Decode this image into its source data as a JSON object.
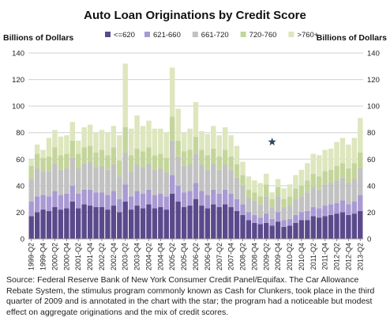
{
  "chart_data": {
    "type": "bar",
    "stacked": true,
    "title": "Auto Loan Originations by Credit Score",
    "ylabel_left": "Billions of Dollars",
    "ylabel_right": "Billions of Dollars",
    "ylim": [
      0,
      140
    ],
    "yticks": [
      0,
      20,
      40,
      60,
      80,
      100,
      120,
      140
    ],
    "xtick_labels": [
      "1999-Q2",
      "1999-Q4",
      "2000-Q2",
      "2000-Q4",
      "2001-Q2",
      "2001-Q4",
      "2002-Q2",
      "2002-Q4",
      "2003-Q2",
      "2003-Q4",
      "2004-Q2",
      "2004-Q4",
      "2005-Q2",
      "2005-Q4",
      "2006-Q2",
      "2006-Q4",
      "2007-Q2",
      "2007-Q4",
      "2008-Q2",
      "2008-Q4",
      "2009-Q2",
      "2009-Q4",
      "2010-Q2",
      "2010-Q4",
      "2011-Q2",
      "2011-Q4",
      "2012-Q2",
      "2012-Q4",
      "2013-Q2"
    ],
    "categories": [
      "1999-Q2",
      "1999-Q3",
      "1999-Q4",
      "2000-Q1",
      "2000-Q2",
      "2000-Q3",
      "2000-Q4",
      "2001-Q1",
      "2001-Q2",
      "2001-Q3",
      "2001-Q4",
      "2002-Q1",
      "2002-Q2",
      "2002-Q3",
      "2002-Q4",
      "2003-Q1",
      "2003-Q2",
      "2003-Q3",
      "2003-Q4",
      "2004-Q1",
      "2004-Q2",
      "2004-Q3",
      "2004-Q4",
      "2005-Q1",
      "2005-Q2",
      "2005-Q3",
      "2005-Q4",
      "2006-Q1",
      "2006-Q2",
      "2006-Q3",
      "2006-Q4",
      "2007-Q1",
      "2007-Q2",
      "2007-Q3",
      "2007-Q4",
      "2008-Q1",
      "2008-Q2",
      "2008-Q3",
      "2008-Q4",
      "2009-Q1",
      "2009-Q2",
      "2009-Q3",
      "2009-Q4",
      "2010-Q1",
      "2010-Q2",
      "2010-Q3",
      "2010-Q4",
      "2011-Q1",
      "2011-Q2",
      "2011-Q3",
      "2011-Q4",
      "2012-Q1",
      "2012-Q2",
      "2012-Q3",
      "2012-Q4",
      "2013-Q1",
      "2013-Q2"
    ],
    "series": [
      {
        "name": "<=620",
        "color": "#5a4a8c",
        "values": [
          17,
          20,
          22,
          21,
          24,
          22,
          23,
          28,
          23,
          26,
          25,
          24,
          24,
          22,
          25,
          20,
          28,
          22,
          25,
          23,
          26,
          23,
          24,
          22,
          34,
          28,
          24,
          25,
          30,
          25,
          23,
          26,
          24,
          26,
          24,
          21,
          18,
          14,
          12,
          11,
          12,
          10,
          13,
          9,
          10,
          12,
          14,
          14,
          17,
          16,
          17,
          18,
          19,
          20,
          18,
          19,
          21
        ]
      },
      {
        "name": "621-660",
        "color": "#a99ad3",
        "values": [
          11,
          12,
          11,
          11,
          12,
          11,
          11,
          12,
          11,
          11,
          12,
          11,
          11,
          11,
          11,
          10,
          13,
          10,
          11,
          11,
          11,
          10,
          10,
          10,
          14,
          12,
          11,
          11,
          12,
          11,
          10,
          11,
          10,
          11,
          10,
          9,
          8,
          6,
          6,
          5,
          7,
          5,
          7,
          5,
          5,
          6,
          6,
          7,
          7,
          7,
          8,
          8,
          8,
          9,
          8,
          9,
          12
        ]
      },
      {
        "name": "661-720",
        "color": "#c2c2c2",
        "values": [
          17,
          21,
          18,
          19,
          21,
          19,
          19,
          21,
          19,
          20,
          21,
          19,
          20,
          19,
          20,
          17,
          24,
          19,
          20,
          20,
          20,
          19,
          19,
          18,
          26,
          22,
          20,
          20,
          22,
          20,
          19,
          20,
          18,
          19,
          18,
          16,
          14,
          11,
          11,
          10,
          13,
          9,
          12,
          10,
          10,
          12,
          12,
          14,
          15,
          14,
          16,
          16,
          17,
          17,
          16,
          17,
          20
        ]
      },
      {
        "name": "720-760",
        "color": "#c4d59b",
        "values": [
          10,
          11,
          10,
          11,
          12,
          11,
          11,
          13,
          11,
          12,
          12,
          11,
          12,
          11,
          13,
          12,
          19,
          12,
          12,
          12,
          12,
          11,
          11,
          11,
          18,
          12,
          11,
          11,
          13,
          11,
          11,
          11,
          10,
          11,
          10,
          10,
          8,
          6,
          6,
          6,
          9,
          6,
          7,
          6,
          7,
          8,
          8,
          9,
          10,
          10,
          10,
          10,
          11,
          11,
          11,
          12,
          12
        ]
      },
      {
        "name": ">760+",
        "color": "#dde6bd",
        "values": [
          5,
          7,
          6,
          14,
          13,
          14,
          14,
          14,
          10,
          15,
          16,
          15,
          15,
          17,
          16,
          19,
          48,
          20,
          25,
          19,
          20,
          20,
          19,
          19,
          37,
          24,
          14,
          16,
          26,
          14,
          16,
          17,
          16,
          17,
          16,
          14,
          10,
          10,
          9,
          10,
          8,
          5,
          6,
          8,
          9,
          10,
          12,
          13,
          15,
          16,
          16,
          16,
          18,
          19,
          18,
          19,
          26
        ]
      }
    ],
    "annotations": [
      {
        "type": "star",
        "category": "2009-Q3",
        "y": 73,
        "color": "#2f4a63"
      }
    ],
    "grid": "horizontal",
    "legend": "top-center"
  },
  "source_text": "Source: Federal Reserve Bank of New York Consumer Credit Panel/Equifax. The Car Allowance Rebate System, the stimulus program commonly known as Cash for Clunkers, took place in the third quarter of 2009 and is annotated in the chart with the star; the program had a noticeable but modest effect on aggregate originations and the mix of credit scores."
}
